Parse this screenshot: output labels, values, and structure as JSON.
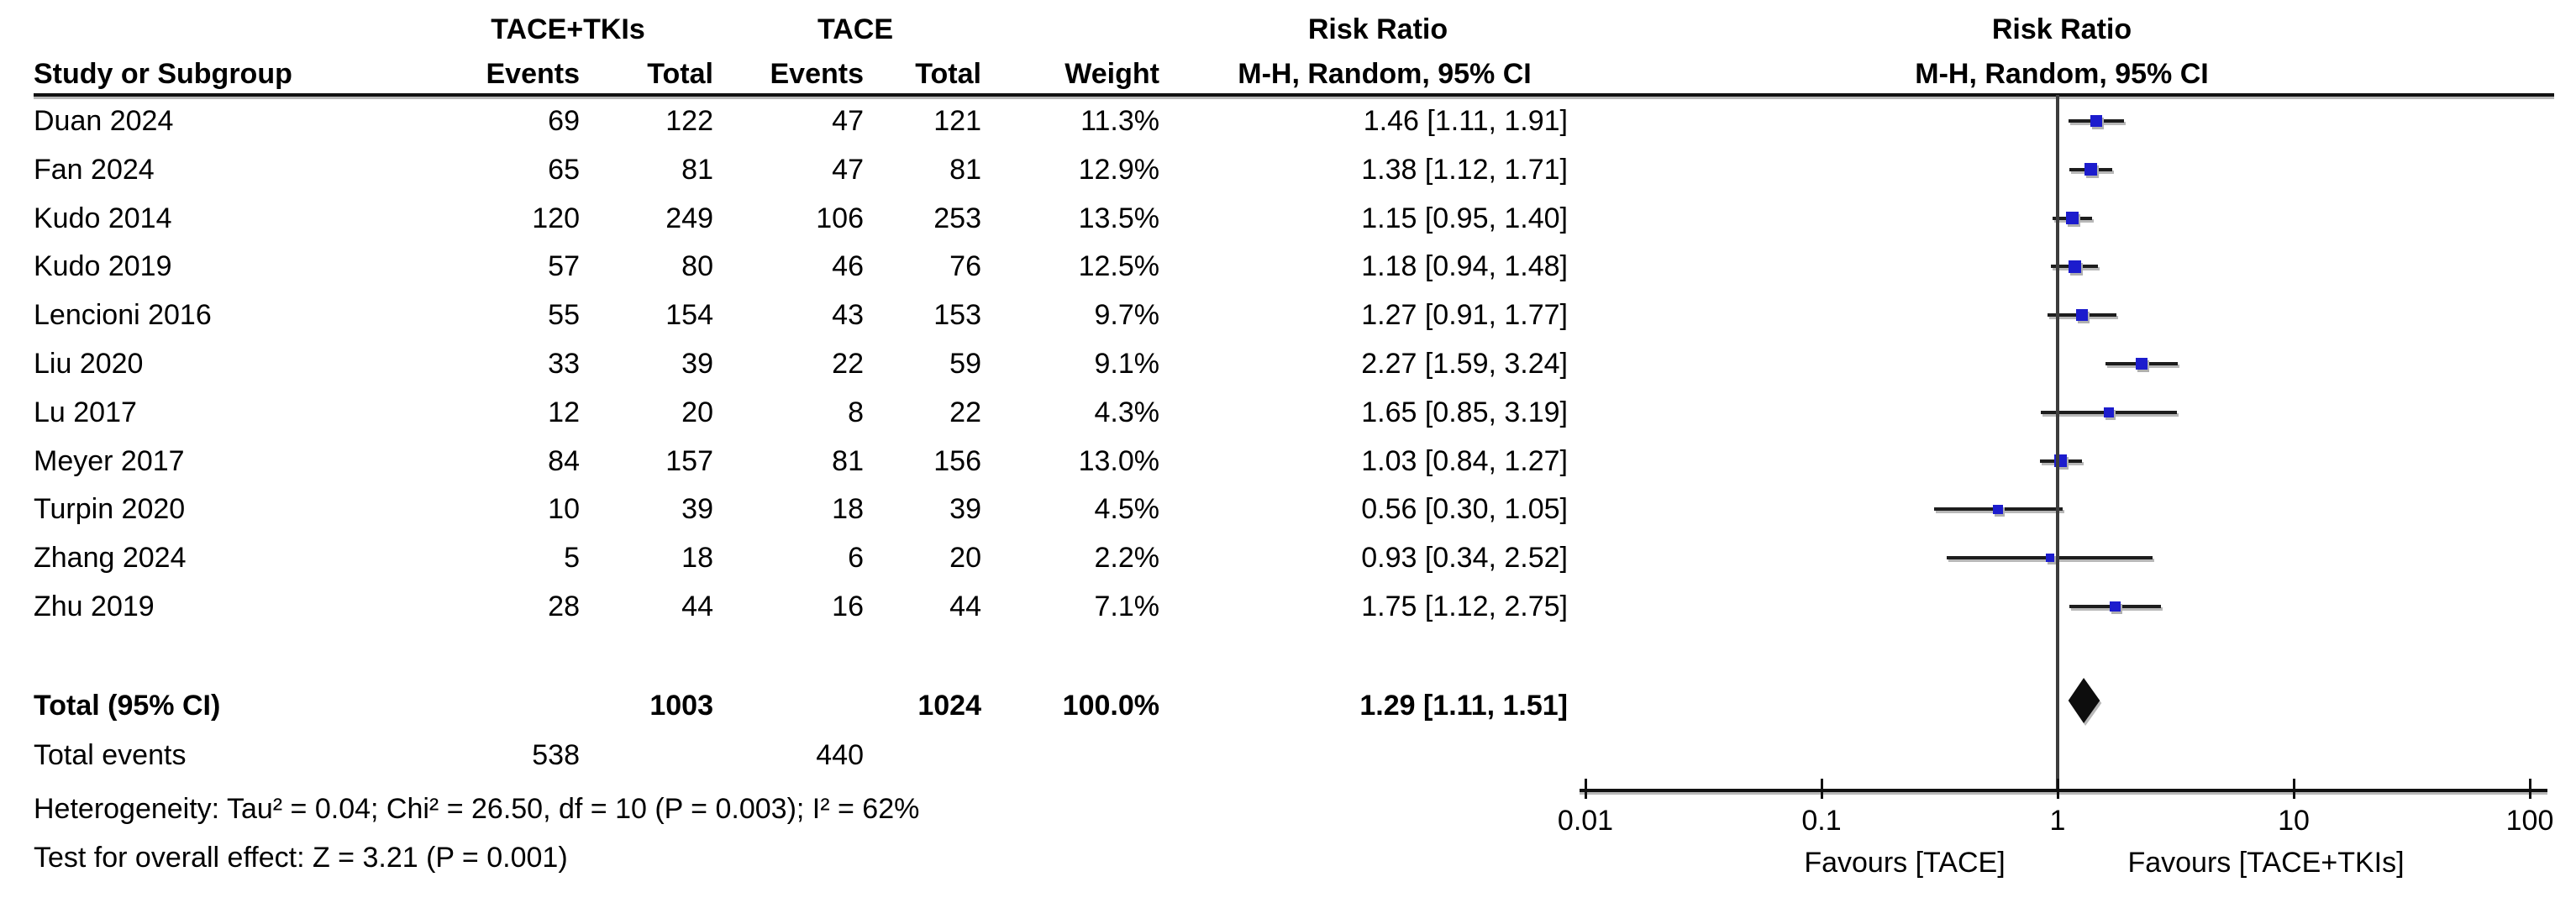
{
  "header": {
    "group1": "TACE+TKIs",
    "group2": "TACE",
    "risk_ratio_left": "Risk Ratio",
    "risk_ratio_right": "Risk Ratio",
    "col_study": "Study or Subgroup",
    "col_events": "Events",
    "col_total": "Total",
    "col_events2": "Events",
    "col_total2": "Total",
    "col_weight": "Weight",
    "col_ci_left": "M-H, Random, 95% CI",
    "col_ci_right": "M-H, Random, 95% CI"
  },
  "studies": [
    {
      "name": "Duan 2024",
      "events1": "69",
      "total1": "122",
      "events2": "47",
      "total2": "121",
      "weight": "11.3%",
      "weight_pct": 11.3,
      "ci_text": "1.46 [1.11, 1.91]",
      "rr": 1.46,
      "lo": 1.11,
      "hi": 1.91
    },
    {
      "name": "Fan 2024",
      "events1": "65",
      "total1": "81",
      "events2": "47",
      "total2": "81",
      "weight": "12.9%",
      "weight_pct": 12.9,
      "ci_text": "1.38 [1.12, 1.71]",
      "rr": 1.38,
      "lo": 1.12,
      "hi": 1.71
    },
    {
      "name": "Kudo 2014",
      "events1": "120",
      "total1": "249",
      "events2": "106",
      "total2": "253",
      "weight": "13.5%",
      "weight_pct": 13.5,
      "ci_text": "1.15 [0.95, 1.40]",
      "rr": 1.15,
      "lo": 0.95,
      "hi": 1.4
    },
    {
      "name": "Kudo 2019",
      "events1": "57",
      "total1": "80",
      "events2": "46",
      "total2": "76",
      "weight": "12.5%",
      "weight_pct": 12.5,
      "ci_text": "1.18 [0.94, 1.48]",
      "rr": 1.18,
      "lo": 0.94,
      "hi": 1.48
    },
    {
      "name": "Lencioni 2016",
      "events1": "55",
      "total1": "154",
      "events2": "43",
      "total2": "153",
      "weight": "9.7%",
      "weight_pct": 9.7,
      "ci_text": "1.27 [0.91, 1.77]",
      "rr": 1.27,
      "lo": 0.91,
      "hi": 1.77
    },
    {
      "name": "Liu 2020",
      "events1": "33",
      "total1": "39",
      "events2": "22",
      "total2": "59",
      "weight": "9.1%",
      "weight_pct": 9.1,
      "ci_text": "2.27 [1.59, 3.24]",
      "rr": 2.27,
      "lo": 1.59,
      "hi": 3.24
    },
    {
      "name": "Lu 2017",
      "events1": "12",
      "total1": "20",
      "events2": "8",
      "total2": "22",
      "weight": "4.3%",
      "weight_pct": 4.3,
      "ci_text": "1.65 [0.85, 3.19]",
      "rr": 1.65,
      "lo": 0.85,
      "hi": 3.19
    },
    {
      "name": "Meyer 2017",
      "events1": "84",
      "total1": "157",
      "events2": "81",
      "total2": "156",
      "weight": "13.0%",
      "weight_pct": 13.0,
      "ci_text": "1.03 [0.84, 1.27]",
      "rr": 1.03,
      "lo": 0.84,
      "hi": 1.27
    },
    {
      "name": "Turpin 2020",
      "events1": "10",
      "total1": "39",
      "events2": "18",
      "total2": "39",
      "weight": "4.5%",
      "weight_pct": 4.5,
      "ci_text": "0.56 [0.30, 1.05]",
      "rr": 0.56,
      "lo": 0.3,
      "hi": 1.05
    },
    {
      "name": "Zhang 2024",
      "events1": "5",
      "total1": "18",
      "events2": "6",
      "total2": "20",
      "weight": "2.2%",
      "weight_pct": 2.2,
      "ci_text": "0.93 [0.34, 2.52]",
      "rr": 0.93,
      "lo": 0.34,
      "hi": 2.52
    },
    {
      "name": "Zhu 2019",
      "events1": "28",
      "total1": "44",
      "events2": "16",
      "total2": "44",
      "weight": "7.1%",
      "weight_pct": 7.1,
      "ci_text": "1.75 [1.12, 2.75]",
      "rr": 1.75,
      "lo": 1.12,
      "hi": 2.75
    }
  ],
  "totals": {
    "label": "Total (95% CI)",
    "total1": "1003",
    "total2": "1024",
    "weight": "100.0%",
    "ci_text": "1.29 [1.11, 1.51]",
    "rr": 1.29,
    "lo": 1.11,
    "hi": 1.51,
    "events_label": "Total events",
    "events1": "538",
    "events2": "440"
  },
  "stats": {
    "heterogeneity": "Heterogeneity: Tau² = 0.04; Chi² = 26.50, df = 10 (P = 0.003); I² = 62%",
    "overall_effect": "Test for overall effect: Z = 3.21 (P = 0.001)"
  },
  "plot": {
    "axis_ticks": [
      "0.01",
      "0.1",
      "1",
      "10",
      "100"
    ],
    "favours_left": "Favours [TACE]",
    "favours_right": "Favours [TACE+TKIs]",
    "marker_color": "#1c1ccd",
    "diamond_color": "#0d0d0d"
  },
  "chart_data": {
    "type": "scatter",
    "subtype": "forest-plot",
    "title": "Risk Ratio, M-H, Random, 95% CI — TACE+TKIs vs TACE",
    "x_scale": "log10",
    "xlim": [
      0.01,
      100
    ],
    "x_ticks": [
      0.01,
      0.1,
      1,
      10,
      100
    ],
    "null_line": 1,
    "categories": [
      "Duan 2024",
      "Fan 2024",
      "Kudo 2014",
      "Kudo 2019",
      "Lencioni 2016",
      "Liu 2020",
      "Lu 2017",
      "Meyer 2017",
      "Turpin 2020",
      "Zhang 2024",
      "Zhu 2019"
    ],
    "series": [
      {
        "name": "Risk Ratio (M-H, Random, 95% CI)",
        "values": [
          1.46,
          1.38,
          1.15,
          1.18,
          1.27,
          2.27,
          1.65,
          1.03,
          0.56,
          0.93,
          1.75
        ],
        "ci_low": [
          1.11,
          1.12,
          0.95,
          0.94,
          0.91,
          1.59,
          0.85,
          0.84,
          0.3,
          0.34,
          1.12
        ],
        "ci_high": [
          1.91,
          1.71,
          1.4,
          1.48,
          1.77,
          3.24,
          3.19,
          1.27,
          1.05,
          2.52,
          2.75
        ],
        "weights_pct": [
          11.3,
          12.9,
          13.5,
          12.5,
          9.7,
          9.1,
          4.3,
          13.0,
          4.5,
          2.2,
          7.1
        ]
      }
    ],
    "summary": {
      "label": "Total (95% CI)",
      "value": 1.29,
      "ci_low": 1.11,
      "ci_high": 1.51,
      "weight_pct": 100.0
    },
    "xlabel_left": "Favours [TACE]",
    "xlabel_right": "Favours [TACE+TKIs]",
    "legend_position": "none",
    "grid": false
  }
}
